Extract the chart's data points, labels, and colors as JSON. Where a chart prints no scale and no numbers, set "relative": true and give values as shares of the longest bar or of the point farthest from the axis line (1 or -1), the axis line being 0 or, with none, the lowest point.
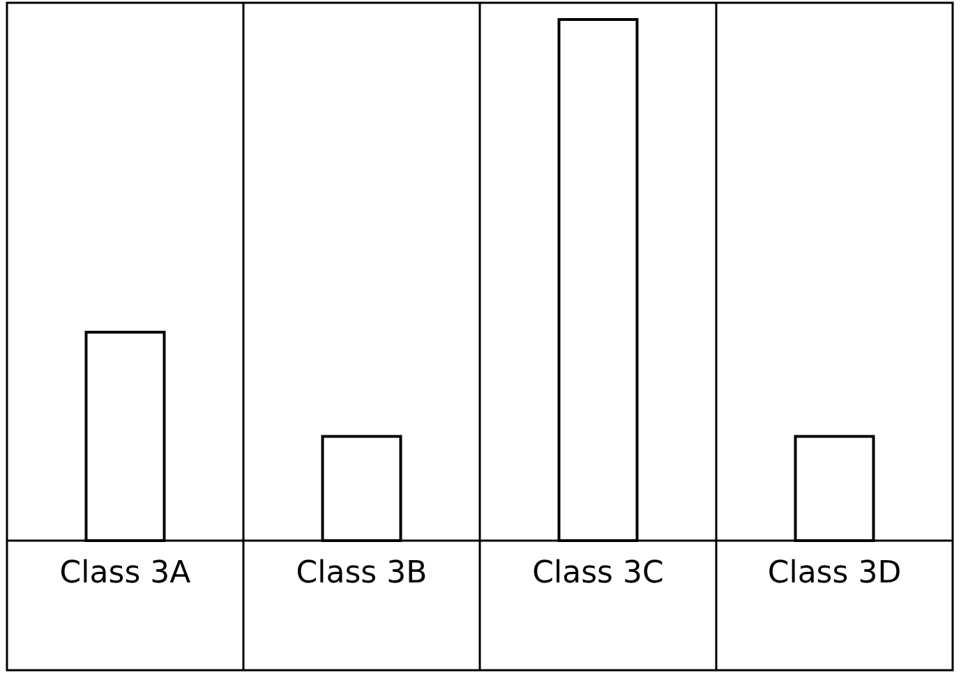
{
  "chart_data": {
    "type": "bar",
    "relative": true,
    "categories": [
      "Class 3A",
      "Class 3B",
      "Class 3C",
      "Class 3D"
    ],
    "values": [
      0.4,
      0.2,
      1,
      0.2
    ],
    "color": "#ffffff"
  }
}
